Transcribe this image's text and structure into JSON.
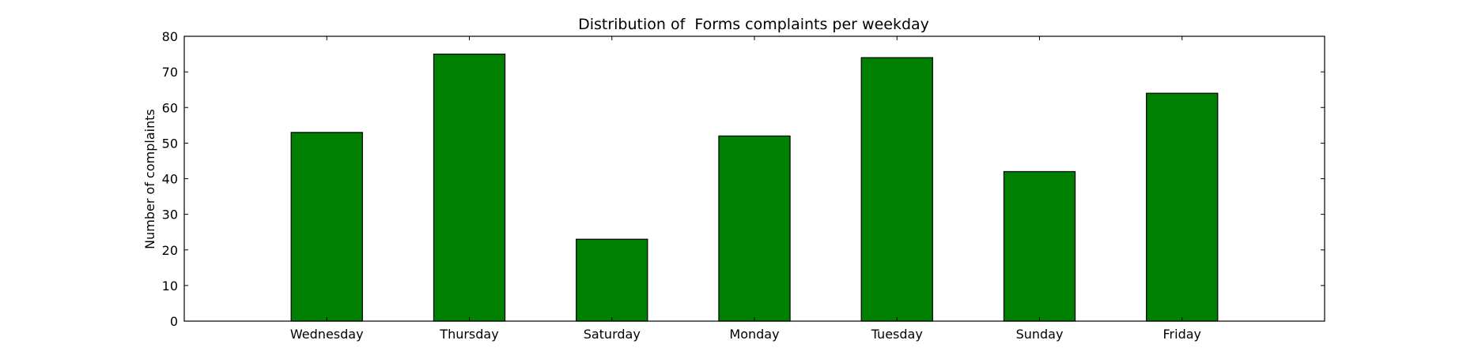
{
  "chart_data": {
    "type": "bar",
    "title": "Distribution of  Forms complaints per weekday",
    "xlabel": "",
    "ylabel": "Number of complaints",
    "categories": [
      "Wednesday",
      "Thursday",
      "Saturday",
      "Monday",
      "Tuesday",
      "Sunday",
      "Friday"
    ],
    "values": [
      53,
      75,
      23,
      52,
      74,
      42,
      64
    ],
    "ylim": [
      0,
      80
    ],
    "yticks": [
      0,
      10,
      20,
      30,
      40,
      50,
      60,
      70,
      80
    ],
    "bar_color": "#008000",
    "edge_color": "#000000",
    "grid": false,
    "legend": "none"
  }
}
